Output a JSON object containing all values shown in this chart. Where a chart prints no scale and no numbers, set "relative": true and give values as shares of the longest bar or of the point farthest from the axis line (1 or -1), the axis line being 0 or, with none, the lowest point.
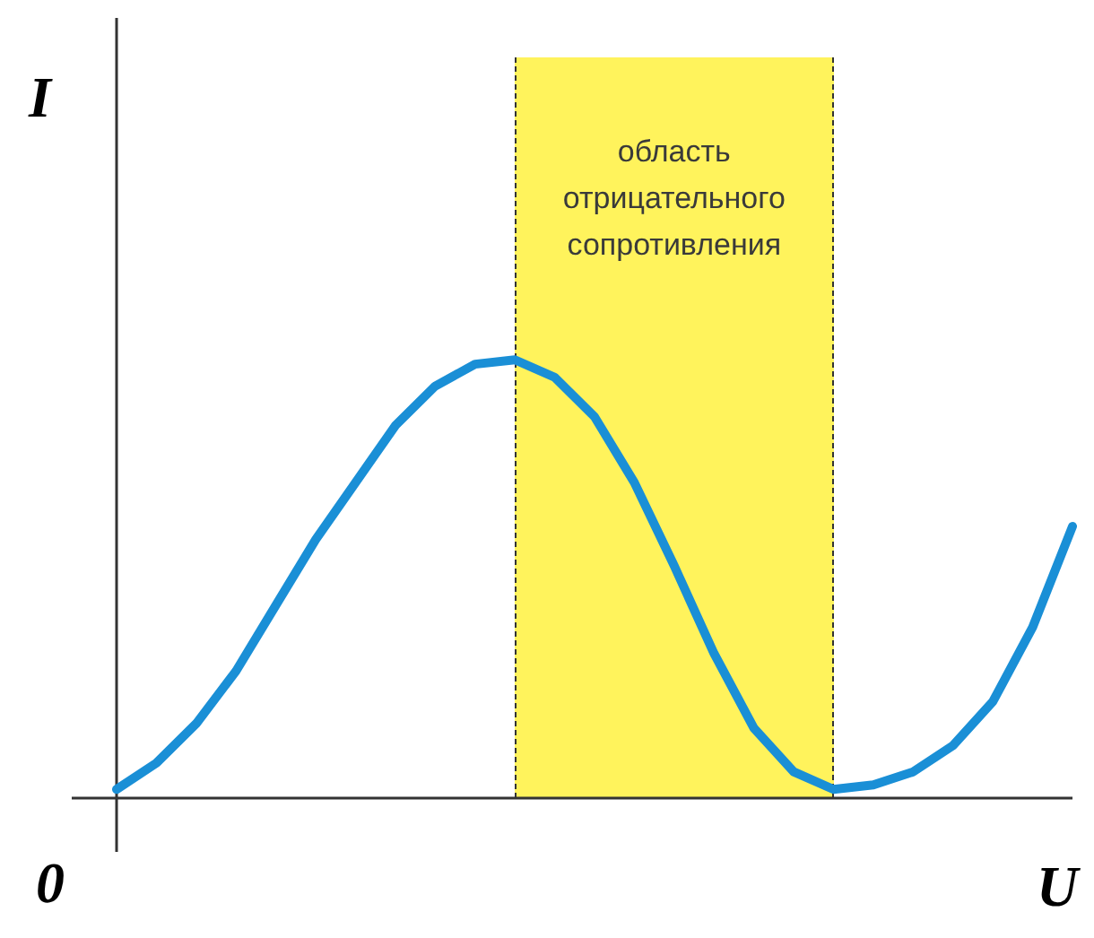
{
  "chart_data": {
    "type": "line",
    "relative": true,
    "xlabel": "U",
    "ylabel": "I",
    "annotations": [
      "0",
      "область отрицательного сопротивления"
    ],
    "categories": [
      null,
      null,
      null,
      null,
      null,
      null,
      null,
      null,
      null,
      null,
      null,
      null,
      null,
      null,
      null,
      null,
      null,
      null,
      null,
      null,
      null,
      null,
      null,
      null,
      null
    ],
    "legend": false,
    "marker": "none",
    "line_style": "solid",
    "series": [
      {
        "color": "#1a8fd6",
        "values": [
          0.02,
          0.08,
          0.17,
          0.29,
          0.44,
          0.59,
          0.72,
          0.85,
          0.94,
          0.99,
          1.0,
          0.96,
          0.87,
          0.72,
          0.53,
          0.33,
          0.16,
          0.06,
          0.02,
          0.03,
          0.06,
          0.12,
          0.22,
          0.39,
          0.62
        ]
      }
    ]
  }
}
